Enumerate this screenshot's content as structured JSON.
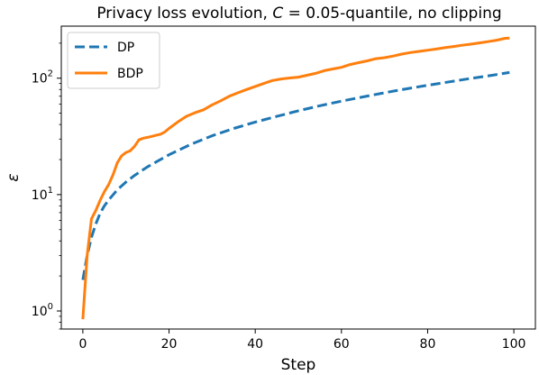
{
  "chart_data": {
    "type": "line",
    "title": "Privacy loss evolution, C = 0.05-quantile, no clipping",
    "title_parts": {
      "prefix": "Privacy loss evolution, ",
      "var": "C",
      "suffix": " = 0.05-quantile, no clipping"
    },
    "xlabel": "Step",
    "ylabel": "ε",
    "yscale": "log",
    "xlim": [
      -5,
      105
    ],
    "ylim": [
      0.7,
      280
    ],
    "x_ticks": [
      0,
      20,
      40,
      60,
      80,
      100
    ],
    "y_ticks": [
      {
        "value": 1,
        "base": "10",
        "exp": "0"
      },
      {
        "value": 10,
        "base": "10",
        "exp": "1"
      },
      {
        "value": 100,
        "base": "10",
        "exp": "2"
      }
    ],
    "grid": false,
    "legend": {
      "position": "upper-left"
    },
    "series": [
      {
        "name": "DP",
        "color": "#1f77b4",
        "style": "dashed",
        "x": [
          0,
          1,
          2,
          3,
          4,
          5,
          6,
          8,
          10,
          12,
          15,
          20,
          25,
          30,
          35,
          40,
          45,
          50,
          55,
          60,
          65,
          70,
          75,
          80,
          85,
          90,
          95,
          99
        ],
        "y": [
          1.85,
          3.0,
          4.3,
          5.6,
          6.9,
          8.0,
          9.0,
          11.0,
          12.8,
          14.6,
          17.3,
          22.0,
          27.0,
          32.0,
          37.0,
          42.0,
          47.0,
          52.5,
          58.0,
          63.5,
          69.0,
          75.0,
          81.0,
          87.0,
          93.0,
          99.5,
          106.0,
          112.0
        ]
      },
      {
        "name": "BDP",
        "color": "#ff7f0e",
        "style": "solid",
        "x": [
          0,
          1,
          2,
          3,
          4,
          5,
          6,
          7,
          8,
          9,
          10,
          11,
          12,
          13,
          14,
          15,
          16,
          17,
          18,
          19,
          20,
          22,
          24,
          26,
          28,
          30,
          32,
          34,
          36,
          38,
          40,
          42,
          44,
          46,
          48,
          50,
          52,
          54,
          56,
          58,
          60,
          62,
          64,
          66,
          68,
          70,
          72,
          74,
          76,
          78,
          80,
          82,
          84,
          86,
          88,
          90,
          92,
          94,
          96,
          98,
          99
        ],
        "y": [
          0.85,
          3.0,
          6.2,
          7.3,
          8.9,
          10.6,
          12.2,
          14.8,
          18.8,
          21.5,
          23.0,
          23.8,
          26.0,
          29.5,
          30.5,
          31.0,
          31.6,
          32.3,
          33.0,
          34.5,
          37.0,
          42.0,
          47.0,
          50.5,
          53.5,
          59.0,
          64.0,
          70.0,
          75.0,
          80.0,
          85.0,
          90.0,
          95.5,
          98.5,
          100.5,
          102.0,
          106.0,
          110.0,
          116.0,
          120.0,
          124.0,
          131.0,
          136.0,
          141.0,
          147.0,
          150.0,
          155.0,
          161.0,
          166.0,
          170.0,
          174.0,
          178.0,
          183.0,
          187.0,
          192.0,
          196.0,
          201.0,
          206.0,
          212.0,
          220.0,
          221.0
        ]
      }
    ]
  }
}
